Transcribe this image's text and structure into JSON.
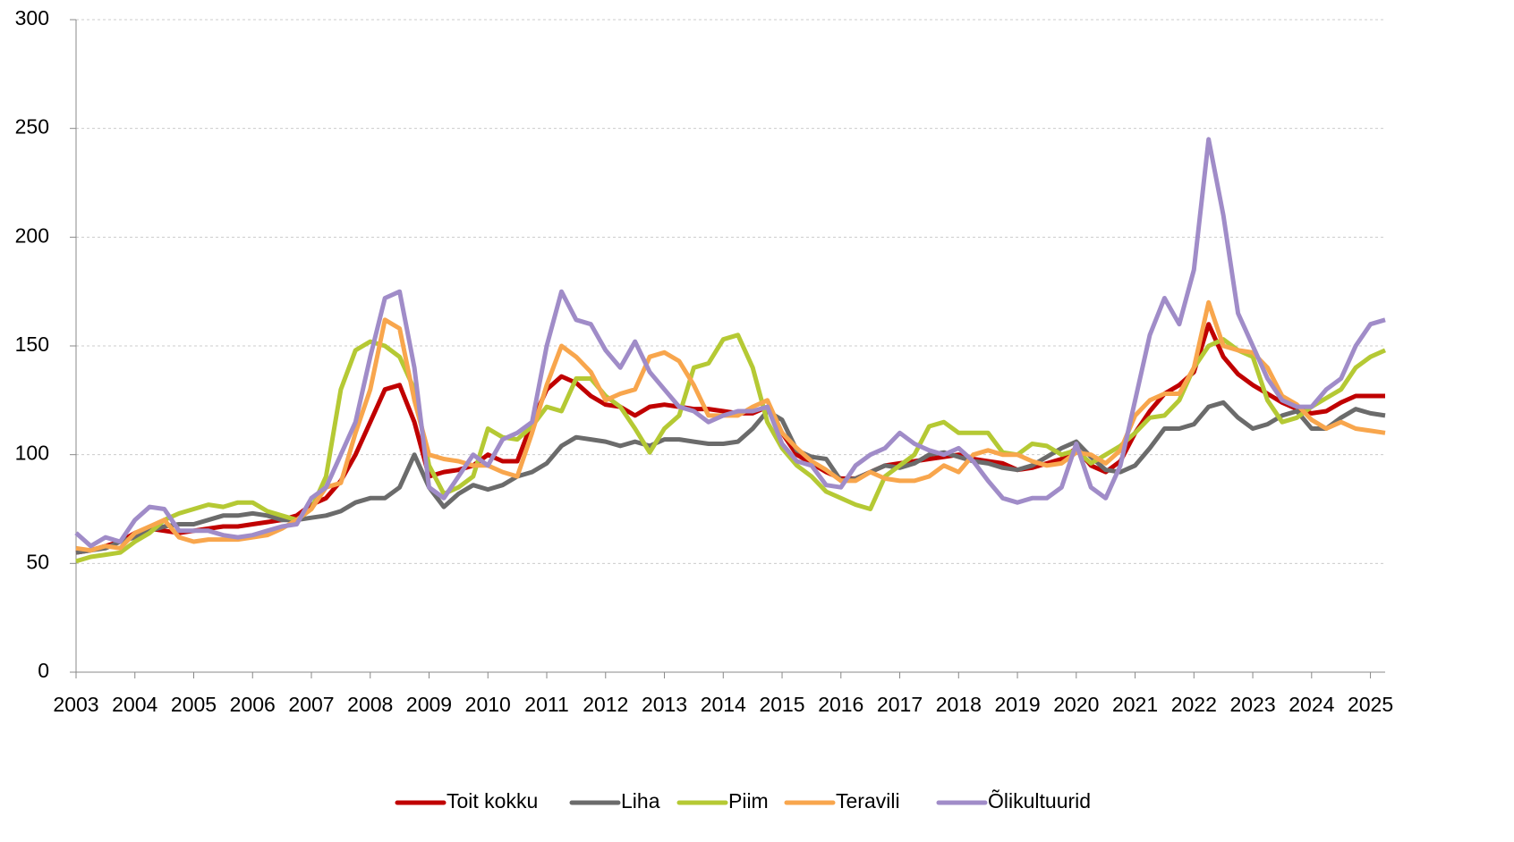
{
  "chart_data": {
    "type": "line",
    "x": [
      2003,
      2003.25,
      2003.5,
      2003.75,
      2004,
      2004.25,
      2004.5,
      2004.75,
      2005,
      2005.25,
      2005.5,
      2005.75,
      2006,
      2006.25,
      2006.5,
      2006.75,
      2007,
      2007.25,
      2007.5,
      2007.75,
      2008,
      2008.25,
      2008.5,
      2008.75,
      2009,
      2009.25,
      2009.5,
      2009.75,
      2010,
      2010.25,
      2010.5,
      2010.75,
      2011,
      2011.25,
      2011.5,
      2011.75,
      2012,
      2012.25,
      2012.5,
      2012.75,
      2013,
      2013.25,
      2013.5,
      2013.75,
      2014,
      2014.25,
      2014.5,
      2014.75,
      2015,
      2015.25,
      2015.5,
      2015.75,
      2016,
      2016.25,
      2016.5,
      2016.75,
      2017,
      2017.25,
      2017.5,
      2017.75,
      2018,
      2018.25,
      2018.5,
      2018.75,
      2019,
      2019.25,
      2019.5,
      2019.75,
      2020,
      2020.25,
      2020.5,
      2020.75,
      2021,
      2021.25,
      2021.5,
      2021.75,
      2022,
      2022.25,
      2022.5,
      2022.75,
      2023,
      2023.25,
      2023.5,
      2023.75,
      2024,
      2024.25,
      2024.5,
      2024.75,
      2025,
      2025.25
    ],
    "series": [
      {
        "name": "Toit kokku",
        "color": "#c00000",
        "values": [
          55,
          56,
          58,
          60,
          64,
          66,
          65,
          64,
          65,
          66,
          67,
          67,
          68,
          69,
          70,
          72,
          77,
          80,
          88,
          100,
          115,
          130,
          132,
          115,
          90,
          92,
          93,
          95,
          100,
          97,
          97,
          115,
          130,
          136,
          133,
          127,
          123,
          122,
          118,
          122,
          123,
          122,
          121,
          121,
          120,
          119,
          119,
          122,
          110,
          100,
          96,
          92,
          89,
          89,
          92,
          95,
          96,
          97,
          98,
          99,
          100,
          98,
          97,
          96,
          93,
          94,
          96,
          98,
          103,
          95,
          92,
          97,
          110,
          120,
          128,
          132,
          138,
          160,
          145,
          137,
          132,
          128,
          124,
          121,
          119,
          120,
          124,
          127,
          127,
          127
        ]
      },
      {
        "name": "Liha",
        "color": "#6b6b6b",
        "values": [
          55,
          56,
          57,
          60,
          62,
          65,
          67,
          68,
          68,
          70,
          72,
          72,
          73,
          72,
          70,
          70,
          71,
          72,
          74,
          78,
          80,
          80,
          85,
          100,
          85,
          76,
          82,
          86,
          84,
          86,
          90,
          92,
          96,
          104,
          108,
          107,
          106,
          104,
          106,
          104,
          107,
          107,
          106,
          105,
          105,
          106,
          112,
          120,
          116,
          102,
          99,
          98,
          88,
          89,
          92,
          95,
          94,
          96,
          100,
          101,
          99,
          97,
          96,
          94,
          93,
          95,
          99,
          103,
          106,
          99,
          93,
          92,
          95,
          103,
          112,
          112,
          114,
          122,
          124,
          117,
          112,
          114,
          118,
          120,
          112,
          112,
          117,
          121,
          119,
          118
        ]
      },
      {
        "name": "Piim",
        "color": "#b5c934",
        "values": [
          51,
          53,
          54,
          55,
          60,
          64,
          70,
          73,
          75,
          77,
          76,
          78,
          78,
          74,
          72,
          70,
          75,
          90,
          130,
          148,
          152,
          150,
          145,
          130,
          95,
          82,
          85,
          90,
          112,
          108,
          107,
          113,
          122,
          120,
          135,
          135,
          127,
          122,
          112,
          101,
          112,
          118,
          140,
          142,
          153,
          155,
          140,
          115,
          103,
          95,
          90,
          83,
          80,
          77,
          75,
          90,
          95,
          100,
          113,
          115,
          110,
          110,
          110,
          101,
          100,
          105,
          104,
          100,
          102,
          96,
          100,
          104,
          110,
          117,
          118,
          125,
          140,
          150,
          153,
          148,
          145,
          125,
          115,
          117,
          122,
          126,
          130,
          140,
          145,
          148
        ]
      },
      {
        "name": "Teravili",
        "color": "#f8a64d",
        "values": [
          57,
          56,
          58,
          57,
          64,
          67,
          70,
          62,
          60,
          61,
          61,
          61,
          62,
          63,
          66,
          70,
          75,
          85,
          87,
          110,
          130,
          162,
          158,
          125,
          100,
          98,
          97,
          95,
          95,
          92,
          90,
          110,
          132,
          150,
          145,
          138,
          125,
          128,
          130,
          145,
          147,
          143,
          132,
          118,
          118,
          118,
          122,
          125,
          110,
          103,
          97,
          93,
          88,
          88,
          92,
          89,
          88,
          88,
          90,
          95,
          92,
          100,
          102,
          100,
          100,
          97,
          95,
          96,
          101,
          100,
          96,
          102,
          118,
          125,
          128,
          128,
          140,
          170,
          150,
          148,
          147,
          140,
          127,
          123,
          116,
          112,
          115,
          112,
          111,
          110
        ]
      },
      {
        "name": "Õlikultuurid",
        "color": "#a08cc8",
        "values": [
          64,
          58,
          62,
          60,
          70,
          76,
          75,
          65,
          65,
          65,
          63,
          62,
          63,
          65,
          67,
          68,
          80,
          85,
          100,
          115,
          145,
          172,
          175,
          140,
          85,
          80,
          90,
          100,
          95,
          107,
          110,
          115,
          150,
          175,
          162,
          160,
          148,
          140,
          152,
          138,
          130,
          122,
          120,
          115,
          118,
          120,
          120,
          122,
          105,
          97,
          95,
          86,
          85,
          95,
          100,
          103,
          110,
          105,
          102,
          100,
          103,
          97,
          88,
          80,
          78,
          80,
          80,
          85,
          105,
          85,
          80,
          95,
          125,
          155,
          172,
          160,
          185,
          245,
          210,
          165,
          150,
          135,
          125,
          122,
          122,
          130,
          135,
          150,
          160,
          162
        ]
      }
    ],
    "xlim": [
      2003,
      2025.25
    ],
    "xticks": [
      2003,
      2004,
      2005,
      2006,
      2007,
      2008,
      2009,
      2010,
      2011,
      2012,
      2013,
      2014,
      2015,
      2016,
      2017,
      2018,
      2019,
      2020,
      2021,
      2022,
      2023,
      2024,
      2025
    ],
    "ylim": [
      0,
      300
    ],
    "yticks": [
      0,
      50,
      100,
      150,
      200,
      250,
      300
    ],
    "grid": true,
    "legend": "bottom"
  }
}
